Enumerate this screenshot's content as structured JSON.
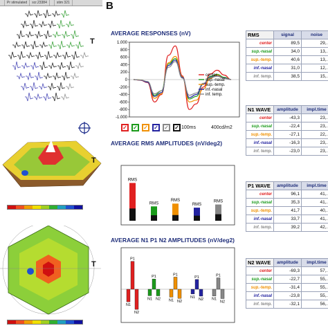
{
  "panel_a": {
    "topbar": [
      "",
      "Pr stimulated",
      "scr.23384",
      "",
      "stim 321"
    ],
    "t_marks": [
      "T",
      "T",
      "T"
    ],
    "trace_colors": [
      "#111111",
      "#3a3ab0",
      "#2a9a2a",
      "#f0a000",
      "#888888"
    ],
    "colorbar_colors": [
      "#d01010",
      "#f05020",
      "#f0a000",
      "#f0e000",
      "#a0d020",
      "#30b030",
      "#20a0c0",
      "#2050d0",
      "#1010a0"
    ]
  },
  "panel_b": {
    "label": "B",
    "avg_responses": {
      "title": "AVERAGE RESPONSES (nV)",
      "legend": [
        "center",
        "sup.-nasal",
        "sup.-temp.",
        "inf.-nasal",
        "inf. temp."
      ],
      "scale_label": "100ms",
      "stim_label": "400cd/m2",
      "check": "✓"
    },
    "avg_rms": {
      "title": "AVERAGE RMS AMPLITUDES (nV/deg2)"
    },
    "avg_n1p1n2": {
      "title": "AVERAGE N1 P1 N2 AMPLITUDES (nV/deg2)"
    }
  },
  "colors": {
    "center": "#e02020",
    "sup_nasal": "#1a9a1a",
    "sup_temp": "#f09000",
    "inf_nasal": "#2323a0",
    "inf_temp": "#888888",
    "title": "#1f2e7a"
  },
  "chart_data": [
    {
      "type": "line",
      "title": "AVERAGE RESPONSES (nV)",
      "ylim": [
        -1000,
        1000
      ],
      "yticks": [
        "1.000",
        "800",
        "600",
        "400",
        "200",
        "0",
        "-200",
        "-400",
        "-600",
        "-800",
        "-1.000"
      ],
      "series": [
        {
          "name": "center",
          "color": "#e02020",
          "values": [
            0,
            -20,
            -80,
            -600,
            -400,
            650,
            900,
            100,
            -800,
            -650,
            -200,
            150,
            250,
            120,
            0
          ]
        },
        {
          "name": "sup.-nasal",
          "color": "#1a9a1a",
          "values": [
            0,
            -10,
            -60,
            -420,
            -300,
            420,
            560,
            50,
            -520,
            -450,
            -120,
            80,
            140,
            60,
            0
          ]
        },
        {
          "name": "sup.-temp.",
          "color": "#f09000",
          "values": [
            0,
            -10,
            -60,
            -500,
            -380,
            450,
            620,
            80,
            -600,
            -550,
            -250,
            30,
            120,
            40,
            0
          ]
        },
        {
          "name": "inf.-nasal",
          "color": "#2323a0",
          "values": [
            0,
            -15,
            -70,
            -450,
            -350,
            380,
            520,
            60,
            -480,
            -400,
            -120,
            60,
            100,
            40,
            0
          ]
        },
        {
          "name": "inf. temp.",
          "color": "#888888",
          "values": [
            0,
            -10,
            -50,
            -380,
            -300,
            330,
            480,
            40,
            -420,
            -360,
            -100,
            50,
            90,
            30,
            0
          ]
        }
      ]
    },
    {
      "type": "bar",
      "title": "AVERAGE RMS AMPLITUDES (nV/deg2)",
      "categories": [
        "center",
        "sup.-nasal",
        "sup.-temp.",
        "inf.-nasal",
        "inf. temp."
      ],
      "bar_label": "RMS",
      "values": [
        89.5,
        34.0,
        40.6,
        31.0,
        38.5
      ],
      "noise": [
        29.0,
        13.0,
        13.5,
        12.0,
        15.5
      ],
      "ylim": [
        0,
        100
      ]
    },
    {
      "type": "bar",
      "title": "AVERAGE N1 P1 N2 AMPLITUDES (nV/deg2)",
      "categories": [
        "center",
        "sup.-nasal",
        "sup.-temp.",
        "inf.-nasal",
        "inf. temp."
      ],
      "labels": [
        "N1",
        "P1",
        "N2"
      ],
      "n1": [
        -43.3,
        -22.4,
        -27.1,
        -16.3,
        -23.0
      ],
      "p1": [
        96.1,
        35.3,
        41.7,
        33.7,
        39.2
      ],
      "n2": [
        -69.3,
        -22.7,
        -31.4,
        -23.8,
        -32.1
      ],
      "ylim": [
        -75,
        100
      ]
    }
  ],
  "tables": {
    "rms": {
      "header": "RMS",
      "cols": [
        "signal",
        "noise"
      ],
      "rows": [
        {
          "label": "center",
          "v1": "89,5",
          "v2": "29,..."
        },
        {
          "label": "sup.-nasal",
          "v1": "34,0",
          "v2": "13,..."
        },
        {
          "label": "sup.-temp.",
          "v1": "40,6",
          "v2": "13,..."
        },
        {
          "label": "inf.-nasal",
          "v1": "31,0",
          "v2": "12,..."
        },
        {
          "label": "inf. temp.",
          "v1": "38,5",
          "v2": "15,..."
        }
      ]
    },
    "n1": {
      "header": "N1 WAVE",
      "cols": [
        "amplitude",
        "impl.time"
      ],
      "rows": [
        {
          "label": "center",
          "v1": "-43,3",
          "v2": "23,..."
        },
        {
          "label": "sup.-nasal",
          "v1": "-22,4",
          "v2": "23,..."
        },
        {
          "label": "sup.-temp.",
          "v1": "-27,1",
          "v2": "22,..."
        },
        {
          "label": "inf.-nasal",
          "v1": "-16,3",
          "v2": "23,..."
        },
        {
          "label": "inf. temp.",
          "v1": "-23,0",
          "v2": "23,..."
        }
      ]
    },
    "p1": {
      "header": "P1 WAVE",
      "cols": [
        "amplitude",
        "impl.time"
      ],
      "rows": [
        {
          "label": "center",
          "v1": "96,1",
          "v2": "41,..."
        },
        {
          "label": "sup.-nasal",
          "v1": "35,3",
          "v2": "41,..."
        },
        {
          "label": "sup.-temp.",
          "v1": "41,7",
          "v2": "40,..."
        },
        {
          "label": "inf.-nasal",
          "v1": "33,7",
          "v2": "41,..."
        },
        {
          "label": "inf. temp.",
          "v1": "39,2",
          "v2": "42,..."
        }
      ]
    },
    "n2": {
      "header": "N2 WAVE",
      "cols": [
        "amplitude",
        "impl.time"
      ],
      "rows": [
        {
          "label": "center",
          "v1": "-69,3",
          "v2": "57,..."
        },
        {
          "label": "sup.-nasal",
          "v1": "-22,7",
          "v2": "55,..."
        },
        {
          "label": "sup.-temp.",
          "v1": "-31,4",
          "v2": "55,..."
        },
        {
          "label": "inf.-nasal",
          "v1": "-23,8",
          "v2": "55,..."
        },
        {
          "label": "inf. temp.",
          "v1": "-32,1",
          "v2": "56,..."
        }
      ]
    }
  }
}
